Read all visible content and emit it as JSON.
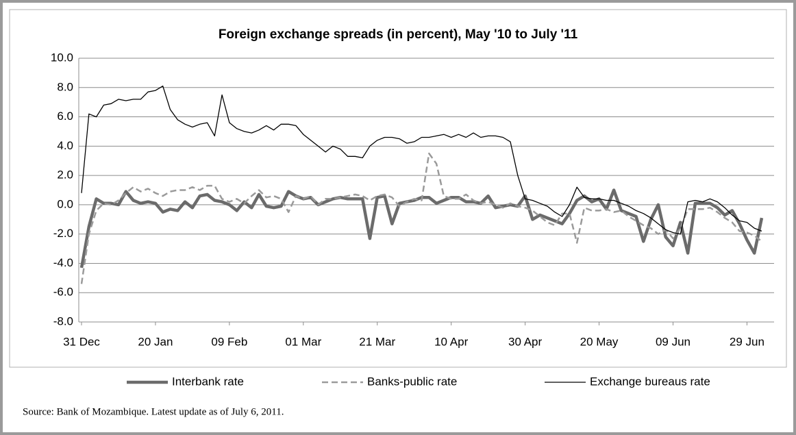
{
  "chart_data": {
    "type": "line",
    "title": "Foreign exchange spreads (in percent), May '10 to July '11",
    "categories": [
      "31 Dec",
      null,
      null,
      null,
      null,
      null,
      null,
      null,
      null,
      null,
      "20 Jan",
      null,
      null,
      null,
      null,
      null,
      null,
      null,
      null,
      null,
      "09 Feb",
      null,
      null,
      null,
      null,
      null,
      null,
      null,
      null,
      null,
      "01 Mar",
      null,
      null,
      null,
      null,
      null,
      null,
      null,
      null,
      null,
      "21 Mar",
      null,
      null,
      null,
      null,
      null,
      null,
      null,
      null,
      null,
      "10 Apr",
      null,
      null,
      null,
      null,
      null,
      null,
      null,
      null,
      null,
      "30 Apr",
      null,
      null,
      null,
      null,
      null,
      null,
      null,
      null,
      null,
      "20 May",
      null,
      null,
      null,
      null,
      null,
      null,
      null,
      null,
      null,
      "09 Jun",
      null,
      null,
      null,
      null,
      null,
      null,
      null,
      null,
      null,
      "29 Jun",
      null,
      null
    ],
    "series": [
      {
        "name": "Interbank rate",
        "color": "#6b6b6b",
        "width": 4.5,
        "dash": false,
        "values": [
          -4.3,
          -1.5,
          0.4,
          0.1,
          0.1,
          0.0,
          0.9,
          0.3,
          0.1,
          0.2,
          0.1,
          -0.5,
          -0.3,
          -0.4,
          0.2,
          -0.2,
          0.6,
          0.7,
          0.3,
          0.2,
          0.0,
          -0.4,
          0.2,
          -0.2,
          0.7,
          -0.1,
          -0.2,
          -0.1,
          0.9,
          0.6,
          0.4,
          0.5,
          0.0,
          0.2,
          0.4,
          0.5,
          0.4,
          0.4,
          0.4,
          -2.3,
          0.5,
          0.6,
          -1.3,
          0.1,
          0.2,
          0.3,
          0.5,
          0.5,
          0.1,
          0.3,
          0.5,
          0.5,
          0.2,
          0.2,
          0.1,
          0.6,
          -0.2,
          -0.1,
          0.0,
          -0.1,
          0.6,
          -1.0,
          -0.7,
          -0.9,
          -1.1,
          -1.3,
          -0.6,
          0.3,
          0.6,
          0.2,
          0.4,
          -0.3,
          1.0,
          -0.4,
          -0.6,
          -0.8,
          -2.5,
          -1.0,
          0.0,
          -2.2,
          -2.8,
          -1.2,
          -3.3,
          0.1,
          0.1,
          0.1,
          -0.2,
          -0.7,
          -0.4,
          -1.3,
          -2.4,
          -3.3,
          -0.9
        ]
      },
      {
        "name": "Banks-public rate",
        "color": "#9a9a9a",
        "width": 2.5,
        "dash": true,
        "values": [
          -5.4,
          -2.0,
          -0.4,
          0.1,
          0.0,
          0.3,
          0.8,
          1.2,
          0.9,
          1.1,
          0.8,
          0.6,
          0.9,
          1.0,
          1.0,
          1.2,
          1.0,
          1.3,
          1.3,
          0.4,
          0.2,
          0.4,
          0.1,
          0.6,
          1.0,
          0.5,
          0.6,
          0.4,
          -0.5,
          0.6,
          0.4,
          0.6,
          0.0,
          0.4,
          0.4,
          0.5,
          0.6,
          0.7,
          0.6,
          0.3,
          0.6,
          0.7,
          0.5,
          -0.1,
          0.2,
          0.4,
          0.3,
          3.5,
          2.8,
          0.6,
          0.4,
          0.4,
          0.7,
          0.3,
          0.1,
          0.2,
          0.0,
          -0.2,
          0.1,
          -0.1,
          -0.2,
          -0.4,
          -0.8,
          -1.2,
          -1.4,
          -0.6,
          -0.6,
          -2.6,
          -0.2,
          -0.4,
          -0.4,
          -0.3,
          -0.5,
          -0.4,
          -0.8,
          -1.1,
          -1.4,
          -1.6,
          -2.0,
          -1.7,
          -2.3,
          -1.6,
          -0.3,
          -0.3,
          -0.3,
          -0.2,
          -0.5,
          -0.9,
          -1.2,
          -1.8,
          -1.9,
          -2.1,
          -2.5
        ]
      },
      {
        "name": "Exchange bureaus rate",
        "color": "#000000",
        "width": 1.3,
        "dash": false,
        "values": [
          0.8,
          6.2,
          6.0,
          6.8,
          6.9,
          7.2,
          7.1,
          7.2,
          7.2,
          7.7,
          7.8,
          8.1,
          6.5,
          5.8,
          5.5,
          5.3,
          5.5,
          5.6,
          4.7,
          7.5,
          5.6,
          5.2,
          5.0,
          4.9,
          5.1,
          5.4,
          5.1,
          5.5,
          5.5,
          5.4,
          4.8,
          4.4,
          4.0,
          3.6,
          4.0,
          3.8,
          3.3,
          3.3,
          3.2,
          4.0,
          4.4,
          4.6,
          4.6,
          4.5,
          4.2,
          4.3,
          4.6,
          4.6,
          4.7,
          4.8,
          4.6,
          4.8,
          4.6,
          4.9,
          4.6,
          4.7,
          4.7,
          4.6,
          4.3,
          2.0,
          0.4,
          0.3,
          0.1,
          -0.1,
          -0.5,
          -0.8,
          0.0,
          1.2,
          0.5,
          0.4,
          0.4,
          0.3,
          0.3,
          0.1,
          -0.1,
          -0.4,
          -0.6,
          -0.9,
          -1.3,
          -1.7,
          -1.9,
          -2.0,
          0.2,
          0.3,
          0.2,
          0.4,
          0.2,
          -0.2,
          -0.7,
          -1.1,
          -1.2,
          -1.6,
          -1.8
        ]
      }
    ],
    "ylim": [
      -8,
      10
    ],
    "yticks": [
      {
        "value": -8,
        "label": "-8.0"
      },
      {
        "value": -6,
        "label": "-6.0"
      },
      {
        "value": -4,
        "label": "-4.0"
      },
      {
        "value": -2,
        "label": "-2.0"
      },
      {
        "value": 0,
        "label": "0.0"
      },
      {
        "value": 2,
        "label": "2.0"
      },
      {
        "value": 4,
        "label": "4.0"
      },
      {
        "value": 6,
        "label": "6.0"
      },
      {
        "value": 8,
        "label": "8.0"
      },
      {
        "value": 10,
        "label": "10.0"
      }
    ],
    "grid": true,
    "legend": "bottom"
  },
  "source": "Source: Bank of Mozambique. Latest update as of July 6, 2011."
}
